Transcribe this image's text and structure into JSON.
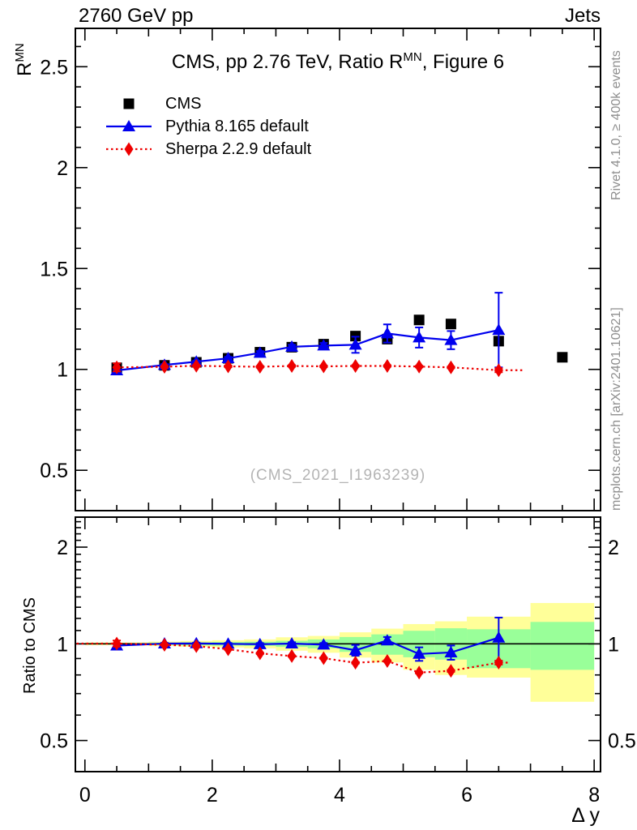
{
  "header": {
    "left": "2760 GeV pp",
    "right": "Jets"
  },
  "titles": {
    "main_pre": "CMS, pp 2.76 TeV, Ratio R",
    "main_sup": "MN",
    "main_post": ", Figure 6",
    "y_base": "R",
    "y_sup": "MN",
    "ratio_y": "Ratio to CMS",
    "x": "Δ y",
    "watermark": "(CMS_2021_I1963239)"
  },
  "side_notes": {
    "top": "Rivet 4.1.0, ≥ 400k events",
    "bottom": "mcplots.cern.ch [arXiv:2401.10621]"
  },
  "legend": {
    "items": [
      {
        "label": "CMS",
        "series": 0
      },
      {
        "label": "Pythia 8.165 default",
        "series": 1
      },
      {
        "label": "Sherpa 2.2.9 default",
        "series": 2
      }
    ]
  },
  "chart_data": {
    "type": "scatter",
    "title": "CMS, pp 2.76 TeV, Ratio R^MN, Figure 6",
    "xlabel": "Δ y",
    "xlim": [
      -0.15,
      8.1
    ],
    "xticks": [
      0,
      2,
      4,
      6,
      8
    ],
    "x_minor_step": 0.5,
    "x": [
      0.5,
      1.25,
      1.75,
      2.25,
      2.75,
      3.25,
      3.75,
      4.25,
      4.75,
      5.25,
      5.75,
      6.5,
      7.5
    ],
    "main_panel": {
      "ylabel": "R^MN",
      "ylim": [
        0.3,
        2.69
      ],
      "yticks": [
        0.5,
        1,
        1.5,
        2,
        2.5
      ],
      "y_minor_step": 0.1,
      "series": [
        {
          "name": "CMS",
          "marker": "square",
          "color": "#000000",
          "line": "none",
          "values": [
            1.008,
            1.02,
            1.035,
            1.055,
            1.085,
            1.11,
            1.125,
            1.165,
            1.15,
            1.245,
            1.225,
            1.14,
            1.06
          ],
          "errors": [
            0.004,
            0.004,
            0.004,
            0.004,
            0.004,
            0.004,
            0.004,
            0.004,
            0.004,
            0.004,
            0.004,
            0.004,
            0.004
          ]
        },
        {
          "name": "Pythia 8.165 default",
          "marker": "triangle",
          "color": "#0000ee",
          "line": "solid",
          "values": [
            0.995,
            1.022,
            1.038,
            1.055,
            1.082,
            1.112,
            1.118,
            1.122,
            1.178,
            1.158,
            1.145,
            1.195
          ],
          "errors": [
            0.004,
            0.004,
            0.005,
            0.007,
            0.009,
            0.01,
            0.013,
            0.04,
            0.045,
            0.05,
            0.045,
            0.185
          ]
        },
        {
          "name": "Sherpa 2.2.9 default",
          "marker": "diamond",
          "color": "#ee0000",
          "line": "dotted",
          "values": [
            1.01,
            1.013,
            1.018,
            1.015,
            1.013,
            1.017,
            1.015,
            1.017,
            1.017,
            1.014,
            1.01,
            0.996
          ],
          "errors": [
            0.02,
            0.004,
            0.004,
            0.004,
            0.004,
            0.004,
            0.004,
            0.004,
            0.004,
            0.004,
            0.004,
            0.01
          ],
          "ext_right": 6.9
        }
      ]
    },
    "ratio_panel": {
      "ylabel": "Ratio to CMS",
      "scale": "log",
      "ylim": [
        0.4,
        2.48
      ],
      "yticks": [
        0.5,
        1,
        2
      ],
      "baseline": 1,
      "series": [
        {
          "name": "Pythia 8.165 default",
          "marker": "triangle",
          "color": "#0000ee",
          "line": "solid",
          "values": [
            0.987,
            1.002,
            1.003,
            1.0,
            0.997,
            1.002,
            0.994,
            0.955,
            1.024,
            0.93,
            0.94,
            1.045
          ],
          "errors": [
            0.01,
            0.005,
            0.005,
            0.006,
            0.008,
            0.009,
            0.012,
            0.037,
            0.026,
            0.045,
            0.048,
            0.162
          ]
        },
        {
          "name": "Sherpa 2.2.9 default",
          "marker": "diamond",
          "color": "#ee0000",
          "line": "dotted",
          "values": [
            1.002,
            0.993,
            0.984,
            0.962,
            0.934,
            0.916,
            0.902,
            0.873,
            0.884,
            0.814,
            0.824,
            0.874
          ],
          "errors": [
            0.022,
            0.004,
            0.004,
            0.004,
            0.004,
            0.004,
            0.004,
            0.005,
            0.005,
            0.005,
            0.006,
            0.012
          ],
          "ext_left": -0.13,
          "ext_right": 6.65
        }
      ],
      "bands": {
        "yellow_color": "#ffff99",
        "green_color": "#99ff99",
        "edges": [
          0,
          1,
          1.5,
          2,
          2.5,
          3,
          3.5,
          4,
          4.5,
          5,
          5.5,
          6,
          7,
          8
        ],
        "yellow_lo": [
          0.99,
          0.984,
          0.979,
          0.974,
          0.968,
          0.952,
          0.938,
          0.906,
          0.875,
          0.83,
          0.8,
          0.785,
          0.66
        ],
        "yellow_hi": [
          1.01,
          1.016,
          1.021,
          1.026,
          1.032,
          1.048,
          1.058,
          1.086,
          1.115,
          1.152,
          1.175,
          1.215,
          1.34
        ],
        "green_lo": [
          0.995,
          0.992,
          0.989,
          0.987,
          0.985,
          0.978,
          0.968,
          0.944,
          0.925,
          0.908,
          0.893,
          0.84,
          0.83
        ],
        "green_hi": [
          1.005,
          1.008,
          1.011,
          1.013,
          1.015,
          1.022,
          1.032,
          1.05,
          1.07,
          1.098,
          1.118,
          1.11,
          1.17
        ]
      }
    }
  }
}
